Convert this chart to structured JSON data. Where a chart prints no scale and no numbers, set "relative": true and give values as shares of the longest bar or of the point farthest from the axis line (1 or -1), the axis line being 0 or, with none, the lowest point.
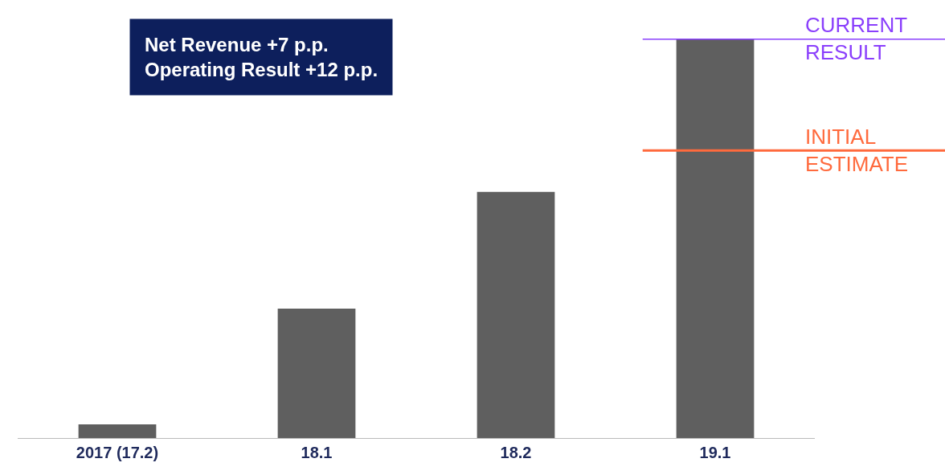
{
  "chart_data": {
    "type": "bar",
    "relative": true,
    "categories": [
      "2017 (17.2)",
      "18.1",
      "18.2",
      "19.1"
    ],
    "values": [
      0.034,
      0.324,
      0.616,
      1
    ],
    "color": "#5f5f5f",
    "ref_lines": [
      {
        "axis": "y",
        "value": 1,
        "label": "CURRENT\nRESULT",
        "color": "#8a3ffc"
      },
      {
        "axis": "y",
        "value": 0.72,
        "label": "INITIAL\nESTIMATE",
        "color": "#ff6a3d"
      }
    ],
    "annotations": [
      "Net Revenue +7 p.p.\nOperating Result +12 p.p."
    ],
    "legend": false
  }
}
